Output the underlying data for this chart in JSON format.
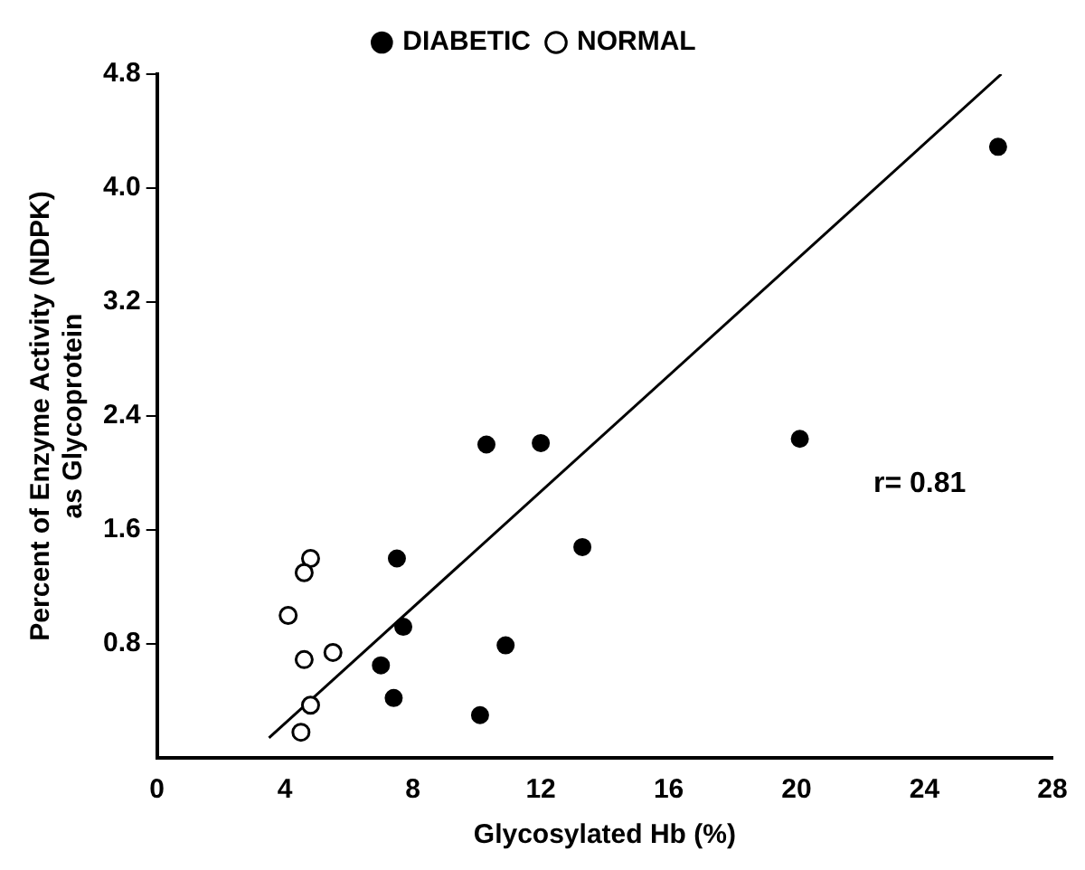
{
  "chart_data": {
    "type": "scatter",
    "xlabel": "Glycosylated Hb (%)",
    "ylabel": "Percent of Enzyme Activity (NDPK)\nas Glycoprotein",
    "xlim": [
      0,
      28
    ],
    "xticks": [
      0,
      4,
      8,
      12,
      16,
      20,
      24,
      28
    ],
    "ylim": [
      0,
      4.8
    ],
    "yticks": [
      {
        "value": 0.8,
        "label": "0.8"
      },
      {
        "value": 1.6,
        "label": "1.6"
      },
      {
        "value": 2.4,
        "label": "2.4"
      },
      {
        "value": 3.2,
        "label": "3.2"
      },
      {
        "value": 4,
        "label": "4.0"
      },
      {
        "value": 4.8,
        "label": "4.8"
      }
    ],
    "grid": false,
    "legend": "top",
    "annotations": [
      "r= 0.81"
    ],
    "series": [
      {
        "name": "DIABETIC",
        "color": "#000000",
        "marker": "circle",
        "x": [
          26.3,
          20.1,
          10.3,
          12.0,
          13.3,
          7.5,
          7.7,
          10.9,
          7.0,
          7.4,
          10.1
        ],
        "values": [
          4.29,
          2.24,
          2.2,
          2.21,
          1.48,
          1.4,
          0.92,
          0.79,
          0.65,
          0.42,
          0.3
        ]
      },
      {
        "name": "NORMAL",
        "color": "#000000",
        "marker": "circle",
        "x": [
          4.8,
          4.6,
          4.1,
          5.5,
          4.6,
          4.8,
          4.5
        ],
        "values": [
          1.4,
          1.3,
          1.0,
          0.74,
          0.69,
          0.37,
          0.18
        ]
      },
      {
        "type": "line",
        "color": "#000000",
        "marker": "none",
        "x": [
          3.5,
          26.4
        ],
        "values": [
          0.14,
          4.8
        ]
      }
    ]
  }
}
